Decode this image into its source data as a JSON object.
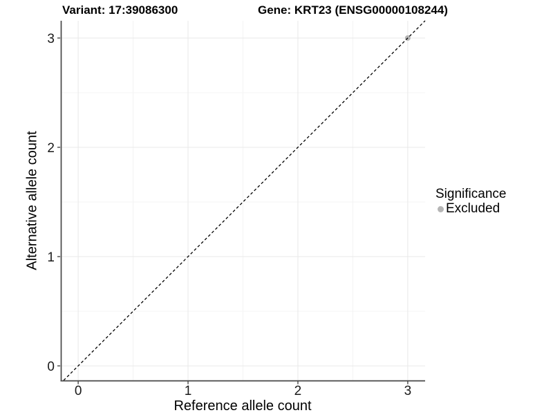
{
  "titles": {
    "variant": "Variant: 17:39086300",
    "gene": "Gene: KRT23 (ENSG00000108244)"
  },
  "legend": {
    "title": "Significance",
    "items": [
      {
        "label": "Excluded",
        "color": "#b5b5b5"
      }
    ]
  },
  "chart_data": {
    "type": "scatter",
    "title_left": "Variant: 17:39086300",
    "title_right": "Gene: KRT23 (ENSG00000108244)",
    "xlabel": "Reference allele count",
    "ylabel": "Alternative allele count",
    "xlim": [
      -0.158,
      3.158
    ],
    "ylim": [
      -0.133,
      3.158
    ],
    "x_ticks": [
      "0",
      "1",
      "2",
      "3"
    ],
    "x_tick_values": [
      0,
      1,
      2,
      3
    ],
    "y_ticks": [
      "0",
      "1",
      "2",
      "3"
    ],
    "y_tick_values": [
      0,
      1,
      2,
      3
    ],
    "x_minor_ticks": [
      0.5,
      1.5,
      2.5
    ],
    "y_minor_ticks": [
      0.5,
      1.5,
      2.5
    ],
    "grid": true,
    "legend_position": "right",
    "reference_line": {
      "type": "identity",
      "equation": "y = x",
      "style": "dashed",
      "color": "#000000"
    },
    "series": [
      {
        "name": "Excluded",
        "color": "#b5b5b5",
        "points": [
          {
            "x": 3,
            "y": 3
          }
        ]
      }
    ]
  },
  "colors": {
    "background": "#ffffff",
    "grid_major": "#e8e8e8",
    "grid_minor": "#f4f4f4",
    "axis_line": "#474747",
    "tick_label": "#1a1a1a",
    "text": "#000000"
  }
}
